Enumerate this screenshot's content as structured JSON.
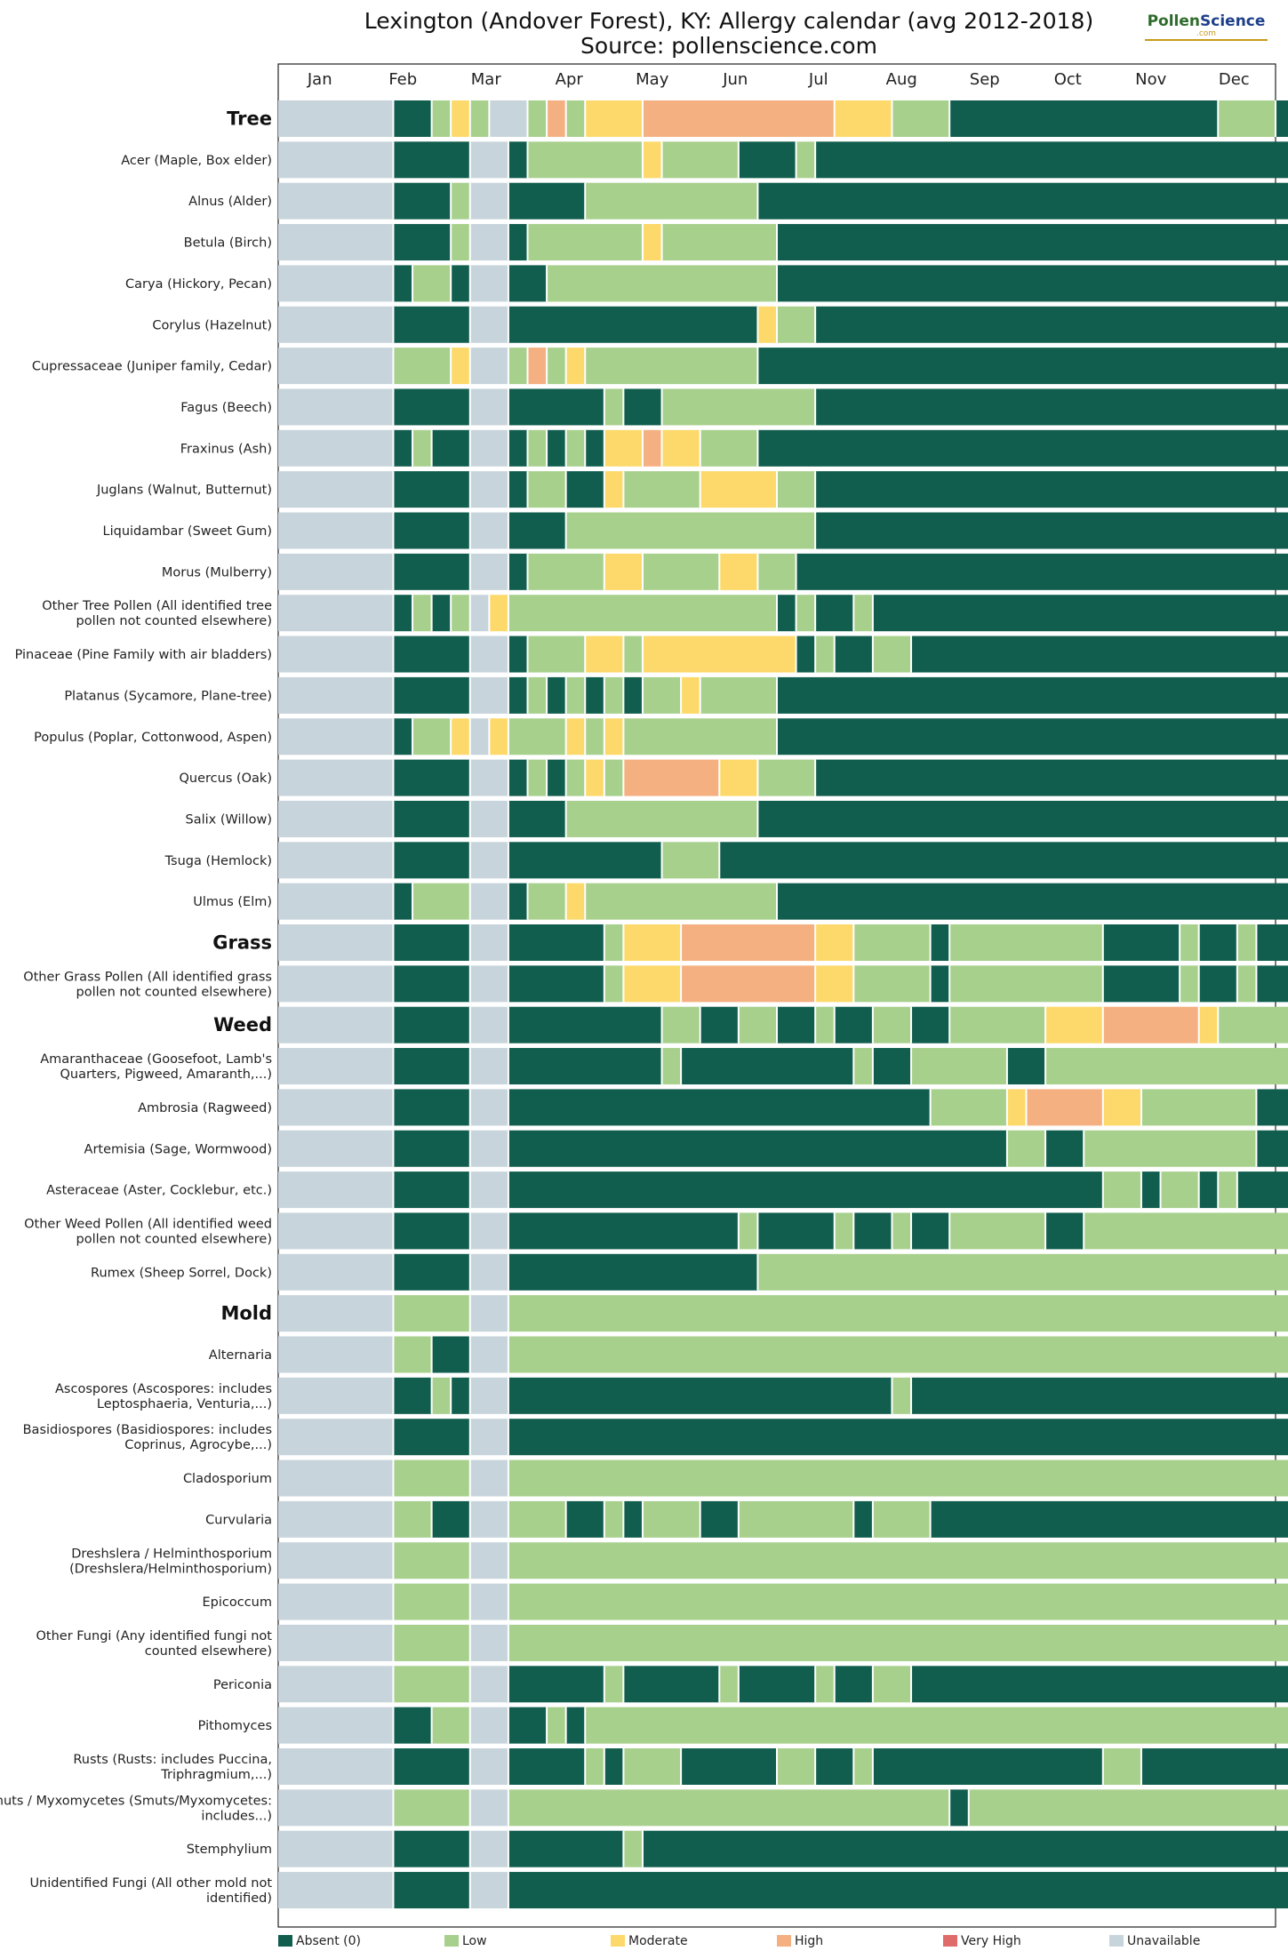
{
  "title_line1": "Lexington (Andover Forest), KY: Allergy calendar (avg 2012-2018)",
  "title_line2": "Source: pollenscience.com",
  "logo": {
    "part1": "Pollen",
    "part2": "Science",
    "sub": ".com"
  },
  "chart_data": {
    "type": "heatmap",
    "title": "Lexington (Andover Forest), KY: Allergy calendar (avg 2012-2018)",
    "subtitle": "Source: pollenscience.com",
    "months": [
      "Jan",
      "Feb",
      "Mar",
      "Apr",
      "May",
      "Jun",
      "Jul",
      "Aug",
      "Sep",
      "Oct",
      "Nov",
      "Dec"
    ],
    "x_unit": "week of year (1-52)",
    "levels": [
      "Absent (0)",
      "Low",
      "Moderate",
      "High",
      "Very High",
      "Unavailable"
    ],
    "level_codes": {
      "A": "Absent (0)",
      "L": "Low",
      "M": "Moderate",
      "H": "High",
      "V": "Very High",
      "U": "Unavailable"
    },
    "colors": {
      "A": "#115e4e",
      "L": "#a8d08d",
      "M": "#fcd96a",
      "H": "#f5b081",
      "V": "#df6b6b",
      "U": "#c8d4dc"
    },
    "legend_position": "bottom",
    "rows": [
      {
        "label": "Tree",
        "group": true,
        "weekly": "UUUUUUAALMLUULHLMMMHHHHHHHHHHMMMLLLAAAAAAAAAAAAAALLLAAAUUAAAUUAAAAAAUUU"
      },
      {
        "label": "Acer (Maple, Box elder)",
        "weekly": "UUUUUUAAAAUUALLLLLLMLLLLAAALAAAAAAAAAAAAAAAAAAAAAAAAAAAUUAAAUUAAAAAAUUU"
      },
      {
        "label": "Alnus (Alder)",
        "weekly": "UUUUUUAAALUUAAAALLLLLLLLLAAAAAAAAAAAAAAAAAAAAAAAAAAAAAAUUAAAUUAAAAAAUUU"
      },
      {
        "label": "Betula (Birch)",
        "weekly": "UUUUUUAAALUUALLLLLLMLLLLLLAAAAAAAAAAAAAAAAAAAAAAAAAAAAAUUAAAUUAAAAAAUUU"
      },
      {
        "label": "Carya (Hickory, Pecan)",
        "weekly": "UUUUUUALLAUUAALLLLLLLLLLLLAAAAAAAAAAAAAAAAAAAAAAAAAAAAAUUAAAUUAAAAAAUUU"
      },
      {
        "label": "Corylus (Hazelnut)",
        "weekly": "UUUUUUAAAAUUAAAAAAAAAAAAAMLLAAAAAAAAAAAAAAAAAAAAAAAAAAAUUAAAUUAAAAAAUUU"
      },
      {
        "label": "Cupressaceae (Juniper family, Cedar)",
        "weekly": "UUUUUULLLMUULHLMLLLLLLLLLAAAAAAAAAAAAAAAAAAAAAAAAAAAAAALLAAAUUAAAAAAUUU"
      },
      {
        "label": "Fagus (Beech)",
        "weekly": "UUUUUUAAAAUUAAAAALAALLLLLLLLAAAAAAAAAAAAAAAAAAAAAAAAAAAUUAAAUUAAAAAAUUU"
      },
      {
        "label": "Fraxinus (Ash)",
        "weekly": "UUUUUUALAAUUALALAMMHMMLLLAAAAAAAAAAAAAAAAAAAAAAAAAAAAAAUUAAAUUAAAAAAUUU"
      },
      {
        "label": "Juglans (Walnut, Butternut)",
        "weekly": "UUUUUUAAAAUUALLAAMLLLLMMMMLLAAAAAAAAAAAAAAAAAAAAAAAAAAAUUAAAUUAAAAAAUUU"
      },
      {
        "label": "Liquidambar (Sweet Gum)",
        "weekly": "UUUUUUAAAAUUAAALLLLLLLLLLLLLAAAAAAAAAAAAAAAAAAAAAAAAAAAUUAAAUUAAAAAAUUU"
      },
      {
        "label": "Morus (Mulberry)",
        "weekly": "UUUUUUAAAAUUALLLLMMLLLLMMLLAAAAAAAAAAAAAAAAAAAAAAAAAAAAUUAAAUUAAAAAAUUU"
      },
      {
        "label": "Other Tree Pollen (All identified tree pollen not counted elsewhere)",
        "weekly": "UUUUUUALALUMLLLLLLLLLLLLLLALAALAAAAAAAAAAAAAAAAAAAAAAAAUUAAAUUAAAAAAUUU"
      },
      {
        "label": "Pinaceae (Pine Family with air bladders)",
        "weekly": "UUUUUUAAAAUUALLLMMLMMMMMMMMALAALLAAAAAAAAAAAAAAAAAAAAAAUUAAAUUAAAAAAUUU"
      },
      {
        "label": "Platanus (Sycamore, Plane-tree)",
        "weekly": "UUUUUUAAAAUUALALALALLMLLLLAAAAAAAAAAAAAAAAAAAAAAAAAAAAAUUAAAUUAAAAAAUUU"
      },
      {
        "label": "Populus (Poplar, Cottonwood, Aspen)",
        "weekly": "UUUUUUALLMUMLLLMLMLLLLLLLLAAAAAAAAAAAAAAAAAAAAAAAAAAAAAUUAAAUUAAAAAAUUU"
      },
      {
        "label": "Quercus (Oak)",
        "weekly": "UUUUUUAAAAUUALALMLHHHHHMMLLLAAAAAAAAAAAAAAAAAAAAAAAAAAAUUAAAUUAAAAAAUUU"
      },
      {
        "label": "Salix (Willow)",
        "weekly": "UUUUUUAAAAUUAAALLLLLLLLLLAAAAAAAAAAAAAAAAAAAAAAAAAAAAAAUUAAAUUAAAAAAUUU"
      },
      {
        "label": "Tsuga (Hemlock)",
        "weekly": "UUUUUUAAAAUUAAAAAAAALLLAAAAAAAAAAAAAAAAAAAAAAAAAAAAAAAAUUAAAUUAAAAAAUUU"
      },
      {
        "label": "Ulmus (Elm)",
        "weekly": "UUUUUUALLLUUALLMLLLLLLLLLLAAAAAAAAAAAAAAAAAAAAAAAAAAAAALLAAAUUAAAAAAUUU"
      },
      {
        "label": "Grass",
        "group": true,
        "weekly": "UUUUUUAAAAUUAAAAALMMMHHHHHHHMMLLLLALLLLLLLLAAAALAALAALAAUUAAAUUAAAAAAUUU"
      },
      {
        "label": "Other Grass Pollen (All identified grass pollen not counted elsewhere)",
        "weekly": "UUUUUUAAAAUUAAAAALMMMHHHHHHHMMLLLLALLLLLLLLAAAALAALAALAAUUAAAUUAAAAAAUUU"
      },
      {
        "label": "Weed",
        "group": true,
        "weekly": "UUUUUUAAAAUUAAAAAAAALLAALLAALAALLAALLLLLMMMHHHHHMLLLLLLAAUUAALLLAAAAUUU"
      },
      {
        "label": "Amaranthaceae (Goosefoot, Lamb's Quarters, Pigweed, Amaranth,...)",
        "weekly": "UUUUUUAAAAUUAAAAAAAALAAAAAAAAALAALLLLLAALLLLLLLLLLLLLLLALUUAAAUUAAAAAAUUU"
      },
      {
        "label": "Ambrosia (Ragweed)",
        "weekly": "UUUUUUAAAAUUAAAAAAAAAAAAAAAAAAAAAALLLLMHHHHMMLLLLLLAALUUAAAUUAAAAAAUUU"
      },
      {
        "label": "Artemisia (Sage, Wormwood)",
        "weekly": "UUUUUUAAAAUUAAAAAAAAAAAAAAAAAAAAAAAAAALLAALLLLLLLLLAAAAAUUAAAUUAAAAAAUUU"
      },
      {
        "label": "Asteraceae (Aster, Cocklebur, etc.)",
        "weekly": "UUUUUUAAAAUUAAAAAAAAAAAAAAAAAAAAAAAAAAAAAAALLALLALAAAAAAUUAAAUUAAAAAAUUU"
      },
      {
        "label": "Other Weed Pollen (All identified weed pollen not counted elsewhere)",
        "weekly": "UUUUUUAAAAUUAAAAAAAAAAAALAAAALAALAALLLLLAALLLLLLLLLLLLAAAUUAAAUUAAAAAAUUU"
      },
      {
        "label": "Rumex (Sheep Sorrel, Dock)",
        "weekly": "UUUUUUAAAAUUAAAAAAAAAAAAALLLLLLLLLLLLLLLLLLLLLLLLLLLLAALUUAAAUUAAAAAAUUU"
      },
      {
        "label": "Mold",
        "group": true,
        "weekly": "UUUUUULLLLUULLLLLLLLLLLLLLLLLLLLLLLLLLLLLLLLLLLLLLLLLLLLUULLLUULLLLLLUUU"
      },
      {
        "label": "Alternaria",
        "weekly": "UUUUUULLAAUULLLLLLLLLLLLLLLLLLLLLLLLLLLLLLLLLLLLLLLLLLLLUULLLUULLLLLAUUU"
      },
      {
        "label": "Ascospores (Ascospores: includes Leptosphaeria, Venturia,...)",
        "weekly": "UUUUUUAALAUUAAAAAAAAAAAAAAAAAAAALAAAAAAAAAAAAAAAAAAAAAAUUAALUUAAAAAAUUU"
      },
      {
        "label": "Basidiospores (Basidiospores: includes Coprinus, Agrocybe,...)",
        "weekly": "UUUUUUAAAAUUAAAAAAAAAAAAAAAAAAAAAAAAAAAAAAAAAAAAAAAAAAAUUALLUULAAAAAUUU"
      },
      {
        "label": "Cladosporium",
        "weekly": "UUUUUULLLLUULLLLLLLLLLLLLLLLLLLLLLLLLLLLLLLLLLLLLLLLLLLLUULLLUULLLLLAUUU"
      },
      {
        "label": "Curvularia",
        "weekly": "UUUUUULLAAUULLLAALALLLAALLLLLLALLLAAAAAAAAAAAAAAAAAAAAAUUALLUULLALLAUUU"
      },
      {
        "label": "Dreshslera / Helminthosporium (Dreshslera/Helminthosporium)",
        "weekly": "UUUUUULLLLUULLLLLLLLLLLLLLLLLLLLLLLLLLLLLLLLLLLLLLLLLLLLUULLLUULLLLLAUUU"
      },
      {
        "label": "Epicoccum",
        "weekly": "UUUUUULLLLUULLLLLLLLLLLLLLLLLLLLLLLLLLLLLLLLLLLLLLLLLLLLUULLLUULLLLLAUUU"
      },
      {
        "label": "Other Fungi (Any identified fungi not counted elsewhere)",
        "weekly": "UUUUUULLLLUULLLLLLLLLLLLLLLLLLLLLLLLLLLLLLLLLLLLLLLLLLLLUULLLUULLLLLLUUU"
      },
      {
        "label": "Periconia",
        "weekly": "UUUUUULLLLUUAAAAALAAAAALAAAALAALLAAAAAAAAAAAAAAAAAAAAAAUUAAAUULLLAAAUUU"
      },
      {
        "label": "Pithomyces",
        "weekly": "UUUUUUAALLUUAALALLLLLLLLLLLLLLLLLLLLLLLLLLLLLLLLLLLLLLLUULLLUULLLALLUUU"
      },
      {
        "label": "Rusts (Rusts: includes Puccina, Triphragmium,...)",
        "weekly": "UUUUUUAAAAUUAAAALALLLAAAAALLAALAAAAAAAAAAAALLAAAAAAAAAAUUAAAUUAAAAAAUUU"
      },
      {
        "label": "Smuts / Myxomycetes (Smuts/Myxomycetes: includes...)",
        "weekly": "UUUUUULLLLUULLLLLLLLLLLLLLLLLLLLLLLALLLLLLLLLLLLLLLLLLLLUUALLUUALLLLLUUU"
      },
      {
        "label": "Stemphylium",
        "weekly": "UUUUUUAAAAUUAAAAAALAAAAAAAAAAAAAAAAAAAAAAAAAAAAAAAAAAAAUUALLUUAAAAAAUUU"
      },
      {
        "label": "Unidentified Fungi (All other mold not identified)",
        "weekly": "UUUUUUAAAAUUAAAAAAAAAAAAAAAAAAAAAAAAAAAAAAAAAAAAAAAAAAAUUALLUUAAAAAAUUU"
      }
    ]
  }
}
